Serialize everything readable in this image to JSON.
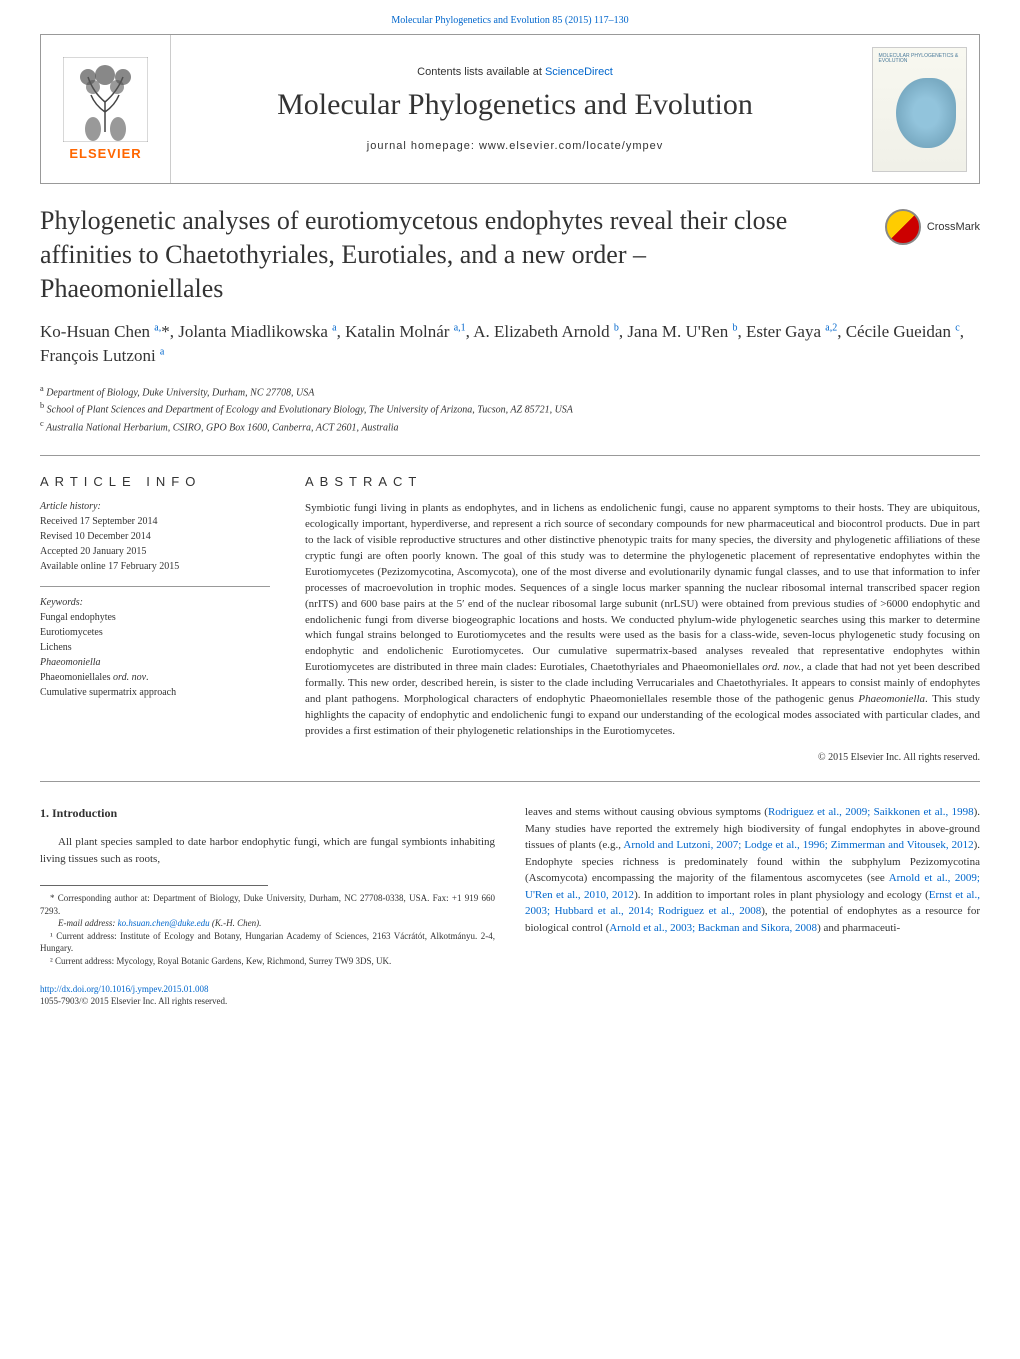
{
  "top_citation": "Molecular Phylogenetics and Evolution 85 (2015) 117–130",
  "header": {
    "contents_prefix": "Contents lists available at ",
    "contents_link": "ScienceDirect",
    "journal_title": "Molecular Phylogenetics and Evolution",
    "homepage_prefix": "journal homepage: ",
    "homepage_url": "www.elsevier.com/locate/ympev",
    "elsevier_label": "ELSEVIER",
    "cover_label": "MOLECULAR PHYLOGENETICS & EVOLUTION"
  },
  "crossmark_label": "CrossMark",
  "article_title": "Phylogenetic analyses of eurotiomycetous endophytes reveal their close affinities to Chaetothyriales, Eurotiales, and a new order – Phaeomoniellales",
  "authors_html": "Ko-Hsuan Chen <sup class='author-sup'>a,</sup>*, Jolanta Miadlikowska <sup class='author-sup'>a</sup>, Katalin Molnár <sup class='author-sup'>a,1</sup>, A. Elizabeth Arnold <sup class='author-sup'>b</sup>, Jana M. U'Ren <sup class='author-sup'>b</sup>, Ester Gaya <sup class='author-sup'>a,2</sup>, Cécile Gueidan <sup class='author-sup'>c</sup>, François Lutzoni <sup class='author-sup'>a</sup>",
  "affiliations": [
    {
      "sup": "a",
      "text": "Department of Biology, Duke University, Durham, NC 27708, USA"
    },
    {
      "sup": "b",
      "text": "School of Plant Sciences and Department of Ecology and Evolutionary Biology, The University of Arizona, Tucson, AZ 85721, USA"
    },
    {
      "sup": "c",
      "text": "Australia National Herbarium, CSIRO, GPO Box 1600, Canberra, ACT 2601, Australia"
    }
  ],
  "info_heading": "ARTICLE INFO",
  "abstract_heading": "ABSTRACT",
  "history_label": "Article history:",
  "history": [
    "Received 17 September 2014",
    "Revised 10 December 2014",
    "Accepted 20 January 2015",
    "Available online 17 February 2015"
  ],
  "keywords_label": "Keywords:",
  "keywords": [
    "Fungal endophytes",
    "Eurotiomycetes",
    "Lichens",
    "Phaeomoniella",
    "Phaeomoniellales ord. nov.",
    "Cumulative supermatrix approach"
  ],
  "abstract_text": "Symbiotic fungi living in plants as endophytes, and in lichens as endolichenic fungi, cause no apparent symptoms to their hosts. They are ubiquitous, ecologically important, hyperdiverse, and represent a rich source of secondary compounds for new pharmaceutical and biocontrol products. Due in part to the lack of visible reproductive structures and other distinctive phenotypic traits for many species, the diversity and phylogenetic affiliations of these cryptic fungi are often poorly known. The goal of this study was to determine the phylogenetic placement of representative endophytes within the Eurotiomycetes (Pezizomycotina, Ascomycota), one of the most diverse and evolutionarily dynamic fungal classes, and to use that information to infer processes of macroevolution in trophic modes. Sequences of a single locus marker spanning the nuclear ribosomal internal transcribed spacer region (nrITS) and 600 base pairs at the 5′ end of the nuclear ribosomal large subunit (nrLSU) were obtained from previous studies of >6000 endophytic and endolichenic fungi from diverse biogeographic locations and hosts. We conducted phylum-wide phylogenetic searches using this marker to determine which fungal strains belonged to Eurotiomycetes and the results were used as the basis for a class-wide, seven-locus phylogenetic study focusing on endophytic and endolichenic Eurotiomycetes. Our cumulative supermatrix-based analyses revealed that representative endophytes within Eurotiomycetes are distributed in three main clades: Eurotiales, Chaetothyriales and Phaeomoniellales ord. nov., a clade that had not yet been described formally. This new order, described herein, is sister to the clade including Verrucariales and Chaetothyriales. It appears to consist mainly of endophytes and plant pathogens. Morphological characters of endophytic Phaeomoniellales resemble those of the pathogenic genus Phaeomoniella. This study highlights the capacity of endophytic and endolichenic fungi to expand our understanding of the ecological modes associated with particular clades, and provides a first estimation of their phylogenetic relationships in the Eurotiomycetes.",
  "copyright": "© 2015 Elsevier Inc. All rights reserved.",
  "section_heading": "1. Introduction",
  "intro_para_left": "All plant species sampled to date harbor endophytic fungi, which are fungal symbionts inhabiting living tissues such as roots,",
  "intro_para_right": "leaves and stems without causing obvious symptoms (Rodriguez et al., 2009; Saikkonen et al., 1998). Many studies have reported the extremely high biodiversity of fungal endophytes in above-ground tissues of plants (e.g., Arnold and Lutzoni, 2007; Lodge et al., 1996; Zimmerman and Vitousek, 2012). Endophyte species richness is predominately found within the subphylum Pezizomycotina (Ascomycota) encompassing the majority of the filamentous ascomycetes (see Arnold et al., 2009; U'Ren et al., 2010, 2012). In addition to important roles in plant physiology and ecology (Ernst et al., 2003; Hubbard et al., 2014; Rodriguez et al., 2008), the potential of endophytes as a resource for biological control (Arnold et al., 2003; Backman and Sikora, 2008) and pharmaceuti-",
  "footnotes": {
    "corresponding": "* Corresponding author at: Department of Biology, Duke University, Durham, NC 27708-0338, USA. Fax: +1 919 660 7293.",
    "email_prefix": "E-mail address: ",
    "email": "ko.hsuan.chen@duke.edu",
    "email_suffix": " (K.-H. Chen).",
    "note1": "¹ Current address: Institute of Ecology and Botany, Hungarian Academy of Sciences, 2163 Vácrátót, Alkotmányu. 2-4, Hungary.",
    "note2": "² Current address: Mycology, Royal Botanic Gardens, Kew, Richmond, Surrey TW9 3DS, UK."
  },
  "doi": {
    "url": "http://dx.doi.org/10.1016/j.ympev.2015.01.008",
    "issn": "1055-7903/© 2015 Elsevier Inc. All rights reserved."
  },
  "colors": {
    "link": "#0066cc",
    "elsevier_orange": "#ff6600",
    "text": "#333333",
    "border": "#999999"
  }
}
